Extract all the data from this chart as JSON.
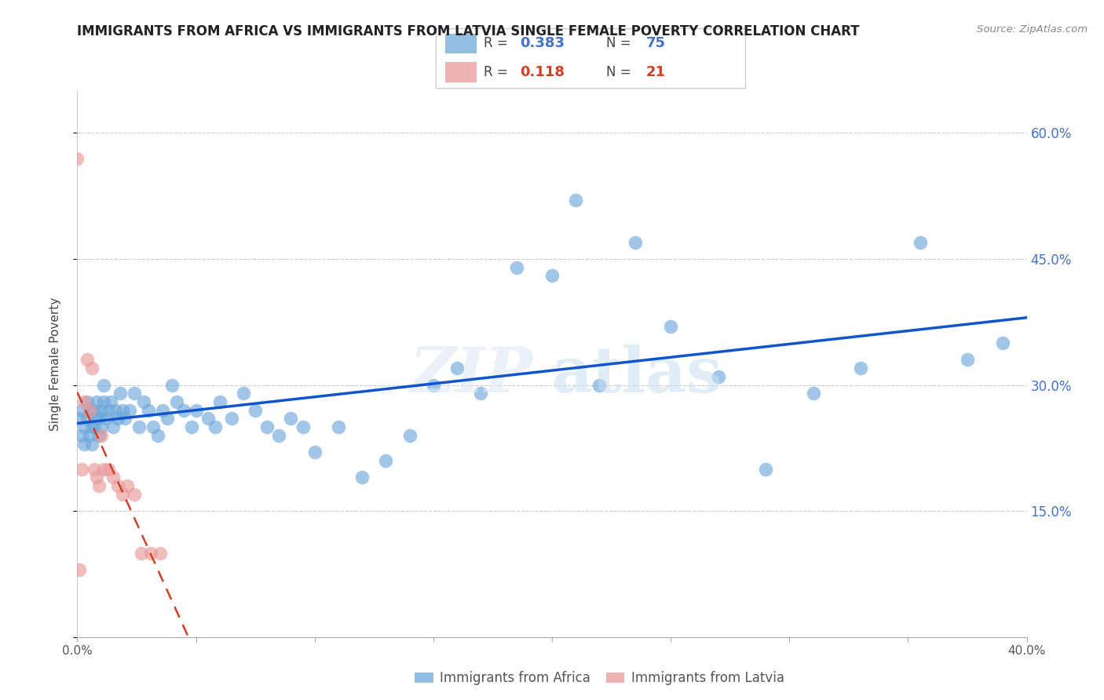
{
  "title": "IMMIGRANTS FROM AFRICA VS IMMIGRANTS FROM LATVIA SINGLE FEMALE POVERTY CORRELATION CHART",
  "source": "Source: ZipAtlas.com",
  "ylabel": "Single Female Poverty",
  "xlim": [
    0.0,
    0.4
  ],
  "ylim": [
    0.0,
    0.65
  ],
  "africa_color": "#6fa8dc",
  "latvia_color": "#ea9999",
  "africa_line_color": "#1155cc",
  "latvia_line_color": "#cc4125",
  "africa_r": "0.383",
  "africa_n": "75",
  "latvia_r": "0.118",
  "latvia_n": "21",
  "africa_color_legend": "#6fa8dc",
  "latvia_color_legend": "#ea9999",
  "right_ytick_labels": [
    "15.0%",
    "30.0%",
    "45.0%",
    "60.0%"
  ],
  "right_ytick_vals": [
    0.15,
    0.3,
    0.45,
    0.6
  ],
  "africa_x": [
    0.001,
    0.002,
    0.002,
    0.003,
    0.003,
    0.004,
    0.004,
    0.005,
    0.005,
    0.006,
    0.006,
    0.007,
    0.007,
    0.008,
    0.008,
    0.009,
    0.009,
    0.01,
    0.01,
    0.011,
    0.011,
    0.012,
    0.013,
    0.014,
    0.015,
    0.016,
    0.017,
    0.018,
    0.019,
    0.02,
    0.022,
    0.024,
    0.026,
    0.028,
    0.03,
    0.032,
    0.034,
    0.036,
    0.038,
    0.04,
    0.042,
    0.045,
    0.048,
    0.05,
    0.055,
    0.058,
    0.06,
    0.065,
    0.07,
    0.075,
    0.08,
    0.085,
    0.09,
    0.095,
    0.1,
    0.11,
    0.12,
    0.13,
    0.14,
    0.15,
    0.16,
    0.17,
    0.185,
    0.2,
    0.21,
    0.22,
    0.235,
    0.25,
    0.27,
    0.29,
    0.31,
    0.33,
    0.355,
    0.375,
    0.39
  ],
  "africa_y": [
    0.26,
    0.24,
    0.27,
    0.25,
    0.23,
    0.26,
    0.28,
    0.24,
    0.27,
    0.25,
    0.23,
    0.27,
    0.25,
    0.26,
    0.28,
    0.24,
    0.26,
    0.25,
    0.27,
    0.3,
    0.28,
    0.26,
    0.27,
    0.28,
    0.25,
    0.27,
    0.26,
    0.29,
    0.27,
    0.26,
    0.27,
    0.29,
    0.25,
    0.28,
    0.27,
    0.25,
    0.24,
    0.27,
    0.26,
    0.3,
    0.28,
    0.27,
    0.25,
    0.27,
    0.26,
    0.25,
    0.28,
    0.26,
    0.29,
    0.27,
    0.25,
    0.24,
    0.26,
    0.25,
    0.22,
    0.25,
    0.19,
    0.21,
    0.24,
    0.3,
    0.32,
    0.29,
    0.44,
    0.43,
    0.52,
    0.3,
    0.47,
    0.37,
    0.31,
    0.2,
    0.29,
    0.32,
    0.47,
    0.33,
    0.35
  ],
  "latvia_x": [
    0.0,
    0.001,
    0.002,
    0.003,
    0.004,
    0.005,
    0.006,
    0.007,
    0.008,
    0.009,
    0.01,
    0.011,
    0.013,
    0.015,
    0.017,
    0.019,
    0.021,
    0.024,
    0.027,
    0.031,
    0.035
  ],
  "latvia_y": [
    0.57,
    0.08,
    0.2,
    0.28,
    0.33,
    0.27,
    0.32,
    0.2,
    0.19,
    0.18,
    0.24,
    0.2,
    0.2,
    0.19,
    0.18,
    0.17,
    0.18,
    0.17,
    0.1,
    0.1,
    0.1
  ]
}
